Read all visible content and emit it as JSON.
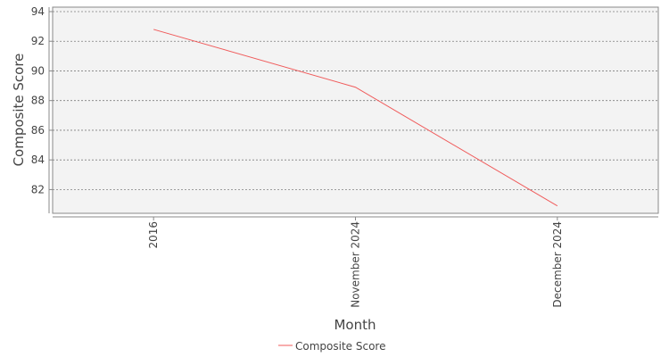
{
  "chart_data": {
    "type": "line",
    "title": "",
    "xlabel": "Month",
    "ylabel": "Composite Score",
    "categories": [
      "2016",
      "November 2024",
      "December 2024"
    ],
    "series": [
      {
        "name": "Composite Score",
        "values": [
          92.8,
          88.9,
          80.9
        ],
        "color": "#f05b5b"
      }
    ],
    "ylim": [
      80.4,
      94.3
    ],
    "yticks": [
      82,
      84,
      86,
      88,
      90,
      92,
      94
    ],
    "grid": true,
    "legend_position": "bottom-center",
    "plot_background": "#f3f3f3",
    "grid_color": "#7f7f7f"
  }
}
